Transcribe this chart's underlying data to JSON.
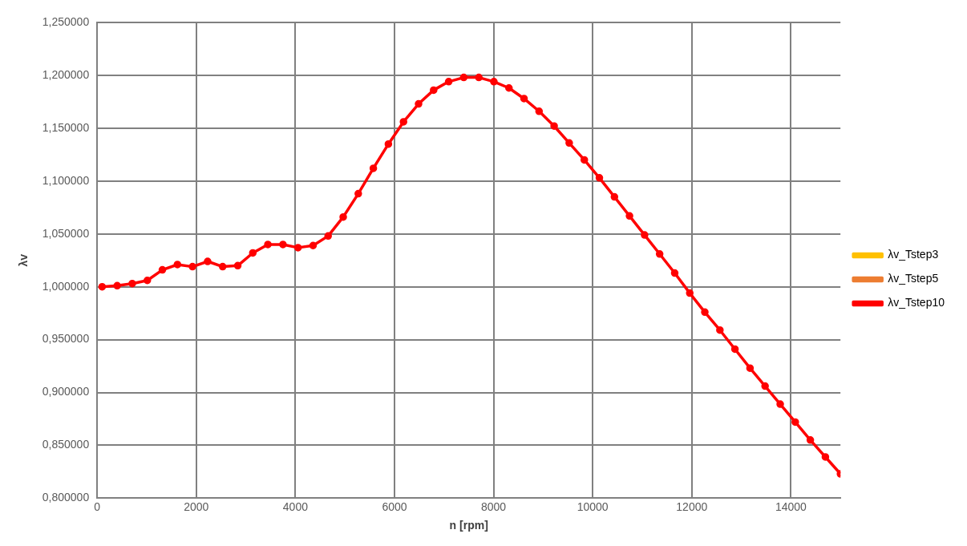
{
  "chart_data": {
    "type": "line",
    "xlabel": "n [rpm]",
    "ylabel": "λv",
    "x": [
      100,
      404,
      708,
      1012,
      1316,
      1620,
      1924,
      2229,
      2533,
      2837,
      3141,
      3445,
      3749,
      4053,
      4357,
      4661,
      4965,
      5269,
      5573,
      5877,
      6182,
      6486,
      6790,
      7094,
      7398,
      7702,
      8006,
      8310,
      8614,
      8918,
      9222,
      9526,
      9831,
      10135,
      10439,
      10743,
      11047,
      11351,
      11655,
      11959,
      12263,
      12567,
      12871,
      13175,
      13479,
      13784,
      14088,
      14392,
      14696,
      15000
    ],
    "series": [
      {
        "name": "λv_Tstep3",
        "color": "#ffc000",
        "values": [
          null,
          null,
          null,
          null,
          null,
          null,
          null,
          null,
          null,
          null,
          null,
          null,
          null,
          null,
          null,
          null,
          null,
          null,
          null,
          null,
          null,
          null,
          null,
          null,
          null,
          null,
          null,
          null,
          null,
          null,
          null,
          null,
          null,
          null,
          null,
          null,
          null,
          null,
          null,
          null,
          null,
          null,
          null,
          null,
          null,
          null,
          null,
          null,
          null,
          null
        ]
      },
      {
        "name": "λv_Tstep5",
        "color": "#ed7d31",
        "values": [
          null,
          null,
          null,
          null,
          null,
          null,
          null,
          null,
          null,
          null,
          null,
          null,
          null,
          null,
          null,
          null,
          null,
          null,
          null,
          null,
          null,
          null,
          null,
          null,
          null,
          null,
          null,
          null,
          null,
          null,
          null,
          null,
          null,
          null,
          null,
          null,
          null,
          null,
          null,
          null,
          null,
          null,
          null,
          null,
          null,
          null,
          null,
          null,
          null,
          null
        ]
      },
      {
        "name": "λv_Tstep10",
        "color": "#ff0000",
        "values": [
          1.0,
          1.001,
          1.003,
          1.006,
          1.016,
          1.021,
          1.019,
          1.024,
          1.019,
          1.02,
          1.032,
          1.04,
          1.04,
          1.037,
          1.039,
          1.048,
          1.066,
          1.088,
          1.112,
          1.135,
          1.156,
          1.173,
          1.186,
          1.194,
          1.198,
          1.198,
          1.194,
          1.188,
          1.178,
          1.166,
          1.152,
          1.136,
          1.12,
          1.103,
          1.085,
          1.067,
          1.049,
          1.031,
          1.013,
          0.994,
          0.976,
          0.959,
          0.941,
          0.923,
          0.906,
          0.889,
          0.872,
          0.855,
          0.839,
          0.823
        ]
      }
    ],
    "xlim": [
      0,
      15000
    ],
    "xticks": [
      0,
      2000,
      4000,
      6000,
      8000,
      10000,
      12000,
      14000
    ],
    "ylim": [
      0.8,
      1.25
    ],
    "yticks": [
      {
        "value": 0.8,
        "label": "0,800000"
      },
      {
        "value": 0.85,
        "label": "0,850000"
      },
      {
        "value": 0.9,
        "label": "0,900000"
      },
      {
        "value": 0.95,
        "label": "0,950000"
      },
      {
        "value": 1.0,
        "label": "1,000000"
      },
      {
        "value": 1.05,
        "label": "1,050000"
      },
      {
        "value": 1.1,
        "label": "1,100000"
      },
      {
        "value": 1.15,
        "label": "1,150000"
      },
      {
        "value": 1.2,
        "label": "1,200000"
      },
      {
        "value": 1.25,
        "label": "1,250000"
      }
    ],
    "grid": true,
    "legend": "right",
    "marker": "circle",
    "line_style": "solid"
  }
}
